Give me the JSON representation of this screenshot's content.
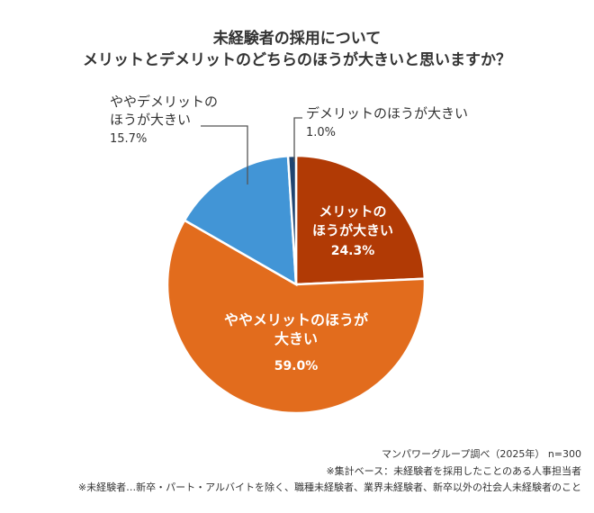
{
  "title": {
    "line1": "未経験者の採用について",
    "line2": "メリットとデメリットのどちらのほうが大きいと思いますか？"
  },
  "chart_data": {
    "type": "pie",
    "slices": [
      {
        "label": [
          "メリットの",
          "ほうが大きい"
        ],
        "value": 24.3,
        "value_text": "24.3%",
        "color": "#b13a05"
      },
      {
        "label": [
          "ややメリットのほうが",
          "大きい"
        ],
        "value": 59.0,
        "value_text": "59.0%",
        "color": "#e26c1d"
      },
      {
        "label": [
          "ややデメリットの",
          "ほうが大きい"
        ],
        "value": 15.7,
        "value_text": "15.7%",
        "color": "#4295d6"
      },
      {
        "label": [
          "デメリットのほうが大きい"
        ],
        "value": 1.0,
        "value_text": "1.0%",
        "color": "#1f4470"
      }
    ],
    "start_angle": "12 o'clock",
    "direction": "clockwise"
  },
  "footnotes": {
    "source": "マンパワーグループ調べ（2025年） n=300",
    "base": "※集計ベース：未経験者を採用したことのある人事担当者",
    "definition": "※未経験者…新卒・パート・アルバイトを除く、職種未経験者、業界未経験者、新卒以外の社会人未経験者のこと"
  }
}
